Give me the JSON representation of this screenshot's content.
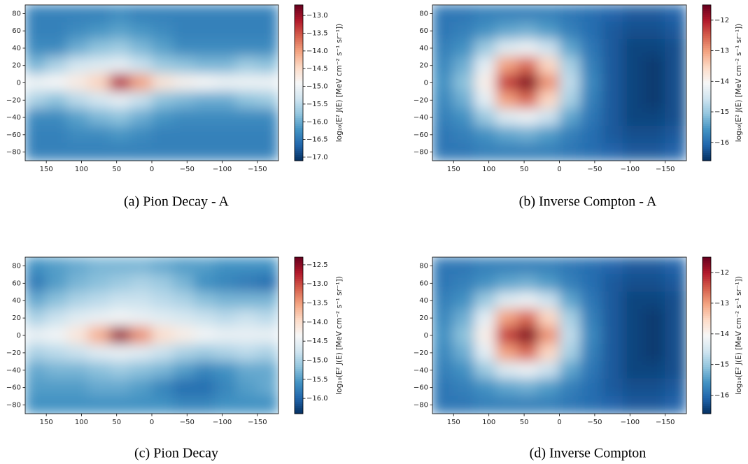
{
  "chart_data": [
    {
      "type": "heatmap",
      "caption": "(a) Pion Decay - A",
      "colormap": "RdBu_r",
      "colorbar_label": "log₁₀(E² J(E) [MeV cm⁻² s⁻¹ sr⁻¹])",
      "x": [
        165,
        135,
        105,
        75,
        45,
        15,
        -15,
        -45,
        -75,
        -105,
        -135,
        -165
      ],
      "y": [
        80,
        60,
        40,
        20,
        0,
        -20,
        -40,
        -60,
        -80
      ],
      "values": [
        [
          -16.4,
          -16.4,
          -16.4,
          -16.4,
          -16.3,
          -16.4,
          -16.4,
          -16.4,
          -16.4,
          -16.4,
          -16.4,
          -16.4
        ],
        [
          -16.4,
          -16.4,
          -16.3,
          -16.2,
          -16.1,
          -16.2,
          -16.3,
          -16.4,
          -16.4,
          -16.4,
          -16.4,
          -16.4
        ],
        [
          -16.3,
          -16.3,
          -16.0,
          -15.8,
          -15.7,
          -15.9,
          -16.1,
          -16.3,
          -16.3,
          -16.3,
          -16.3,
          -16.3
        ],
        [
          -15.9,
          -15.6,
          -15.3,
          -15.2,
          -15.1,
          -15.4,
          -15.7,
          -15.8,
          -15.9,
          -15.9,
          -15.7,
          -15.8
        ],
        [
          -15.0,
          -14.9,
          -14.7,
          -14.4,
          -13.2,
          -14.0,
          -14.6,
          -14.8,
          -14.9,
          -15.0,
          -15.0,
          -15.0
        ],
        [
          -15.6,
          -15.8,
          -15.5,
          -15.3,
          -15.1,
          -15.4,
          -15.8,
          -15.9,
          -16.0,
          -16.0,
          -15.8,
          -15.7
        ],
        [
          -16.3,
          -16.3,
          -16.1,
          -15.9,
          -15.8,
          -16.0,
          -16.2,
          -16.3,
          -16.3,
          -16.3,
          -16.3,
          -16.3
        ],
        [
          -16.4,
          -16.4,
          -16.3,
          -16.3,
          -16.2,
          -16.3,
          -16.4,
          -16.4,
          -16.4,
          -16.4,
          -16.4,
          -16.4
        ],
        [
          -16.4,
          -16.4,
          -16.4,
          -16.4,
          -16.4,
          -16.4,
          -16.4,
          -16.4,
          -16.4,
          -16.4,
          -16.4,
          -16.4
        ]
      ],
      "xlim": [
        180,
        -180
      ],
      "ylim": [
        -90,
        90
      ],
      "clim": [
        -17.1,
        -12.7
      ],
      "xticks": [
        150,
        100,
        50,
        0,
        {
          "value": -50,
          "label": "−50"
        },
        {
          "value": -100,
          "label": "−100"
        },
        {
          "value": -150,
          "label": "−150"
        }
      ],
      "yticks": [
        80,
        60,
        40,
        20,
        0,
        {
          "value": -20,
          "label": "−20"
        },
        {
          "value": -40,
          "label": "−40"
        },
        {
          "value": -60,
          "label": "−60"
        },
        {
          "value": -80,
          "label": "−80"
        }
      ],
      "cticks": [
        {
          "value": -13.0,
          "label": "−13.0"
        },
        {
          "value": -13.5,
          "label": "−13.5"
        },
        {
          "value": -14.0,
          "label": "−14.0"
        },
        {
          "value": -14.5,
          "label": "−14.5"
        },
        {
          "value": -15.0,
          "label": "−15.0"
        },
        {
          "value": -15.5,
          "label": "−15.5"
        },
        {
          "value": -16.0,
          "label": "−16.0"
        },
        {
          "value": -16.5,
          "label": "−16.5"
        },
        {
          "value": -17.0,
          "label": "−17.0"
        }
      ]
    },
    {
      "type": "heatmap",
      "caption": "(b) Inverse Compton - A",
      "colormap": "RdBu_r",
      "colorbar_label": "log₁₀(E² J(E) [MeV cm⁻² s⁻¹ sr⁻¹])",
      "x": [
        165,
        135,
        105,
        75,
        45,
        15,
        -15,
        -45,
        -75,
        -105,
        -135,
        -165
      ],
      "y": [
        80,
        60,
        40,
        20,
        0,
        -20,
        -40,
        -60,
        -80
      ],
      "values": [
        [
          -15.9,
          -15.9,
          -15.8,
          -15.8,
          -15.8,
          -15.8,
          -15.9,
          -16.0,
          -16.1,
          -16.2,
          -16.2,
          -16.1
        ],
        [
          -15.9,
          -15.8,
          -15.6,
          -15.4,
          -15.3,
          -15.5,
          -15.8,
          -16.0,
          -16.2,
          -16.3,
          -16.3,
          -16.2
        ],
        [
          -15.8,
          -15.6,
          -15.0,
          -14.4,
          -14.2,
          -14.6,
          -15.4,
          -15.9,
          -16.2,
          -16.4,
          -16.4,
          -16.3
        ],
        [
          -15.7,
          -15.3,
          -14.3,
          -13.0,
          -12.6,
          -13.5,
          -14.9,
          -15.8,
          -16.2,
          -16.4,
          -16.5,
          -16.3
        ],
        [
          -15.6,
          -15.1,
          -13.9,
          -12.3,
          -11.7,
          -12.9,
          -14.7,
          -15.7,
          -16.2,
          -16.4,
          -16.5,
          -16.3
        ],
        [
          -15.7,
          -15.3,
          -14.3,
          -13.0,
          -12.6,
          -13.5,
          -14.9,
          -15.8,
          -16.2,
          -16.4,
          -16.5,
          -16.3
        ],
        [
          -15.8,
          -15.6,
          -15.0,
          -14.4,
          -14.2,
          -14.6,
          -15.4,
          -15.9,
          -16.2,
          -16.4,
          -16.4,
          -16.3
        ],
        [
          -15.9,
          -15.8,
          -15.6,
          -15.4,
          -15.3,
          -15.5,
          -15.8,
          -16.0,
          -16.2,
          -16.3,
          -16.3,
          -16.2
        ],
        [
          -15.9,
          -15.9,
          -15.8,
          -15.8,
          -15.8,
          -15.8,
          -15.9,
          -16.0,
          -16.1,
          -16.2,
          -16.2,
          -16.1
        ]
      ],
      "xlim": [
        180,
        -180
      ],
      "ylim": [
        -90,
        90
      ],
      "clim": [
        -16.6,
        -11.5
      ],
      "xticks": [
        150,
        100,
        50,
        0,
        {
          "value": -50,
          "label": "−50"
        },
        {
          "value": -100,
          "label": "−100"
        },
        {
          "value": -150,
          "label": "−150"
        }
      ],
      "yticks": [
        80,
        60,
        40,
        20,
        0,
        {
          "value": -20,
          "label": "−20"
        },
        {
          "value": -40,
          "label": "−40"
        },
        {
          "value": -60,
          "label": "−60"
        },
        {
          "value": -80,
          "label": "−80"
        }
      ],
      "cticks": [
        {
          "value": -12,
          "label": "−12"
        },
        {
          "value": -13,
          "label": "−13"
        },
        {
          "value": -14,
          "label": "−14"
        },
        {
          "value": -15,
          "label": "−15"
        },
        {
          "value": -16,
          "label": "−16"
        }
      ]
    },
    {
      "type": "heatmap",
      "caption": "(c) Pion Decay",
      "colormap": "RdBu_r",
      "colorbar_label": "log₁₀(E² J(E) [MeV cm⁻² s⁻¹ sr⁻¹])",
      "x": [
        165,
        135,
        105,
        75,
        45,
        15,
        -15,
        -45,
        -75,
        -105,
        -135,
        -165
      ],
      "y": [
        80,
        60,
        40,
        20,
        0,
        -20,
        -40,
        -60,
        -80
      ],
      "values": [
        [
          -15.6,
          -15.5,
          -15.4,
          -15.3,
          -15.3,
          -15.3,
          -15.4,
          -15.5,
          -15.5,
          -15.6,
          -15.6,
          -15.6
        ],
        [
          -15.8,
          -15.5,
          -15.3,
          -15.2,
          -15.1,
          -15.0,
          -15.1,
          -15.3,
          -15.6,
          -15.7,
          -15.8,
          -15.9
        ],
        [
          -15.4,
          -15.2,
          -15.0,
          -14.9,
          -14.8,
          -14.8,
          -14.9,
          -15.0,
          -15.2,
          -15.3,
          -15.3,
          -15.3
        ],
        [
          -15.0,
          -14.8,
          -14.6,
          -14.5,
          -14.4,
          -14.5,
          -14.6,
          -14.7,
          -14.8,
          -14.9,
          -14.8,
          -14.9
        ],
        [
          -14.5,
          -14.4,
          -14.1,
          -13.6,
          -12.6,
          -13.4,
          -14.0,
          -14.2,
          -14.4,
          -14.5,
          -14.5,
          -14.5
        ],
        [
          -15.0,
          -14.9,
          -14.8,
          -14.6,
          -14.5,
          -14.6,
          -14.8,
          -15.0,
          -15.1,
          -15.0,
          -14.9,
          -15.0
        ],
        [
          -15.4,
          -15.3,
          -15.3,
          -15.2,
          -15.1,
          -15.2,
          -15.3,
          -15.5,
          -15.7,
          -15.6,
          -15.4,
          -15.4
        ],
        [
          -15.5,
          -15.5,
          -15.5,
          -15.4,
          -15.4,
          -15.5,
          -15.7,
          -15.9,
          -15.9,
          -15.7,
          -15.5,
          -15.4
        ],
        [
          -15.6,
          -15.6,
          -15.6,
          -15.6,
          -15.6,
          -15.6,
          -15.6,
          -15.7,
          -15.7,
          -15.6,
          -15.6,
          -15.6
        ]
      ],
      "xlim": [
        180,
        -180
      ],
      "ylim": [
        -90,
        90
      ],
      "clim": [
        -16.4,
        -12.3
      ],
      "xticks": [
        150,
        100,
        50,
        0,
        {
          "value": -50,
          "label": "−50"
        },
        {
          "value": -100,
          "label": "−100"
        },
        {
          "value": -150,
          "label": "−150"
        }
      ],
      "yticks": [
        80,
        60,
        40,
        20,
        0,
        {
          "value": -20,
          "label": "−20"
        },
        {
          "value": -40,
          "label": "−40"
        },
        {
          "value": -60,
          "label": "−60"
        },
        {
          "value": -80,
          "label": "−80"
        }
      ],
      "cticks": [
        {
          "value": -12.5,
          "label": "−12.5"
        },
        {
          "value": -13.0,
          "label": "−13.0"
        },
        {
          "value": -13.5,
          "label": "−13.5"
        },
        {
          "value": -14.0,
          "label": "−14.0"
        },
        {
          "value": -14.5,
          "label": "−14.5"
        },
        {
          "value": -15.0,
          "label": "−15.0"
        },
        {
          "value": -15.5,
          "label": "−15.5"
        },
        {
          "value": -16.0,
          "label": "−16.0"
        }
      ]
    },
    {
      "type": "heatmap",
      "caption": "(d) Inverse Compton",
      "colormap": "RdBu_r",
      "colorbar_label": "log₁₀(E² J(E) [MeV cm⁻² s⁻¹ sr⁻¹])",
      "x": [
        165,
        135,
        105,
        75,
        45,
        15,
        -15,
        -45,
        -75,
        -105,
        -135,
        -165
      ],
      "y": [
        80,
        60,
        40,
        20,
        0,
        -20,
        -40,
        -60,
        -80
      ],
      "values": [
        [
          -15.9,
          -15.9,
          -15.8,
          -15.8,
          -15.8,
          -15.8,
          -15.9,
          -16.0,
          -16.1,
          -16.2,
          -16.2,
          -16.1
        ],
        [
          -15.9,
          -15.8,
          -15.6,
          -15.4,
          -15.3,
          -15.5,
          -15.8,
          -16.0,
          -16.2,
          -16.3,
          -16.3,
          -16.2
        ],
        [
          -15.8,
          -15.6,
          -15.0,
          -14.4,
          -14.2,
          -14.6,
          -15.4,
          -15.9,
          -16.2,
          -16.4,
          -16.4,
          -16.3
        ],
        [
          -15.7,
          -15.3,
          -14.3,
          -13.0,
          -12.6,
          -13.5,
          -14.9,
          -15.8,
          -16.2,
          -16.4,
          -16.5,
          -16.3
        ],
        [
          -15.6,
          -15.1,
          -13.9,
          -12.3,
          -11.7,
          -12.9,
          -14.7,
          -15.7,
          -16.2,
          -16.4,
          -16.5,
          -16.3
        ],
        [
          -15.7,
          -15.3,
          -14.3,
          -13.0,
          -12.6,
          -13.5,
          -14.9,
          -15.8,
          -16.2,
          -16.4,
          -16.5,
          -16.3
        ],
        [
          -15.8,
          -15.6,
          -15.0,
          -14.4,
          -14.2,
          -14.6,
          -15.4,
          -15.9,
          -16.2,
          -16.4,
          -16.4,
          -16.3
        ],
        [
          -15.9,
          -15.8,
          -15.6,
          -15.4,
          -15.3,
          -15.5,
          -15.8,
          -16.0,
          -16.2,
          -16.3,
          -16.3,
          -16.2
        ],
        [
          -15.9,
          -15.9,
          -15.8,
          -15.8,
          -15.8,
          -15.8,
          -15.9,
          -16.0,
          -16.1,
          -16.2,
          -16.2,
          -16.1
        ]
      ],
      "xlim": [
        180,
        -180
      ],
      "ylim": [
        -90,
        90
      ],
      "clim": [
        -16.6,
        -11.5
      ],
      "xticks": [
        150,
        100,
        50,
        0,
        {
          "value": -50,
          "label": "−50"
        },
        {
          "value": -100,
          "label": "−100"
        },
        {
          "value": -150,
          "label": "−150"
        }
      ],
      "yticks": [
        80,
        60,
        40,
        20,
        0,
        {
          "value": -20,
          "label": "−20"
        },
        {
          "value": -40,
          "label": "−40"
        },
        {
          "value": -60,
          "label": "−60"
        },
        {
          "value": -80,
          "label": "−80"
        }
      ],
      "cticks": [
        {
          "value": -12,
          "label": "−12"
        },
        {
          "value": -13,
          "label": "−13"
        },
        {
          "value": -14,
          "label": "−14"
        },
        {
          "value": -15,
          "label": "−15"
        },
        {
          "value": -16,
          "label": "−16"
        }
      ]
    }
  ]
}
